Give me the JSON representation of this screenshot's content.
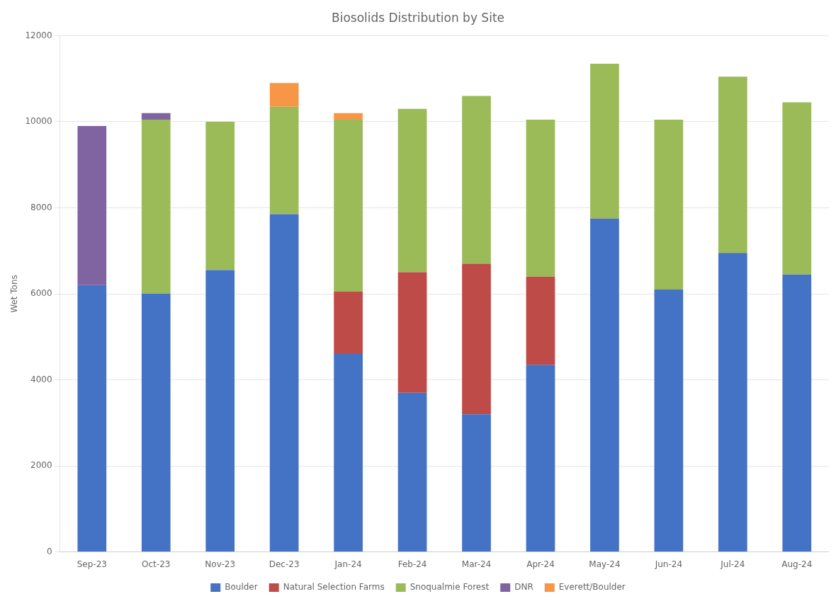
{
  "chart_data": {
    "type": "bar",
    "stacked": true,
    "title": "Biosolids Distribution by Site",
    "ylabel": "Wet Tons",
    "categories": [
      "Sep-23",
      "Oct-23",
      "Nov-23",
      "Dec-23",
      "Jan-24",
      "Feb-24",
      "Mar-24",
      "Apr-24",
      "May-24",
      "Jun-24",
      "Jul-24",
      "Aug-24"
    ],
    "series": [
      {
        "name": "Boulder",
        "color": "#4472C4",
        "values": [
          6200,
          6000,
          6550,
          7850,
          4600,
          3700,
          3200,
          4350,
          7750,
          6100,
          6950,
          6450
        ]
      },
      {
        "name": "Natural Selection Farms",
        "color": "#BE4B48",
        "values": [
          0,
          0,
          0,
          0,
          1450,
          2800,
          3500,
          2050,
          0,
          0,
          0,
          0
        ]
      },
      {
        "name": "Snoqualmie Forest",
        "color": "#9BBB59",
        "values": [
          0,
          4050,
          3450,
          2500,
          4000,
          3800,
          3900,
          3650,
          3600,
          3950,
          4100,
          4000
        ]
      },
      {
        "name": "DNR",
        "color": "#8064A2",
        "values": [
          3700,
          150,
          0,
          0,
          0,
          0,
          0,
          0,
          0,
          0,
          0,
          0
        ]
      },
      {
        "name": "Everett/Boulder",
        "color": "#F79646",
        "values": [
          0,
          0,
          0,
          550,
          150,
          0,
          0,
          0,
          0,
          0,
          0,
          0
        ]
      }
    ],
    "ylim": [
      0,
      12000
    ],
    "yticks": [
      0,
      2000,
      4000,
      6000,
      8000,
      10000,
      12000
    ],
    "grid": true,
    "legend": "bottom"
  }
}
